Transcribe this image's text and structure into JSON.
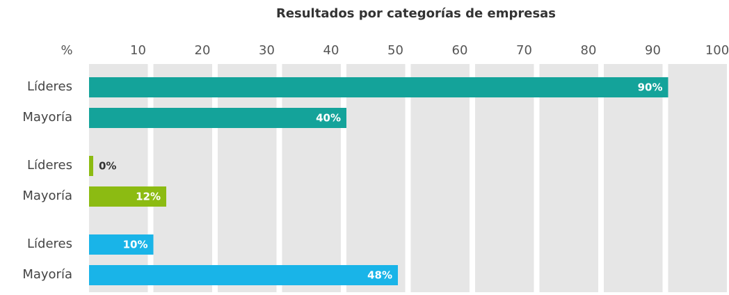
{
  "chart_data": {
    "type": "bar",
    "orientation": "horizontal",
    "title": "Resultados por categorías de empresas",
    "x_label": "%",
    "xlim": [
      0,
      100
    ],
    "xticks": [
      10,
      20,
      30,
      40,
      50,
      60,
      70,
      80,
      90,
      100
    ],
    "groups": [
      {
        "color": "#14a39a",
        "categories": [
          "Líderes",
          "Mayoría"
        ],
        "values": [
          90,
          40
        ],
        "value_labels": [
          "90%",
          "40%"
        ]
      },
      {
        "color": "#8cbb12",
        "categories": [
          "Líderes",
          "Mayoría"
        ],
        "values": [
          0,
          12
        ],
        "value_labels": [
          "0%",
          "12%"
        ]
      },
      {
        "color": "#19b4e8",
        "categories": [
          "Líderes",
          "Mayoría"
        ],
        "values": [
          10,
          48
        ],
        "value_labels": [
          "10%",
          "48%"
        ]
      }
    ]
  }
}
